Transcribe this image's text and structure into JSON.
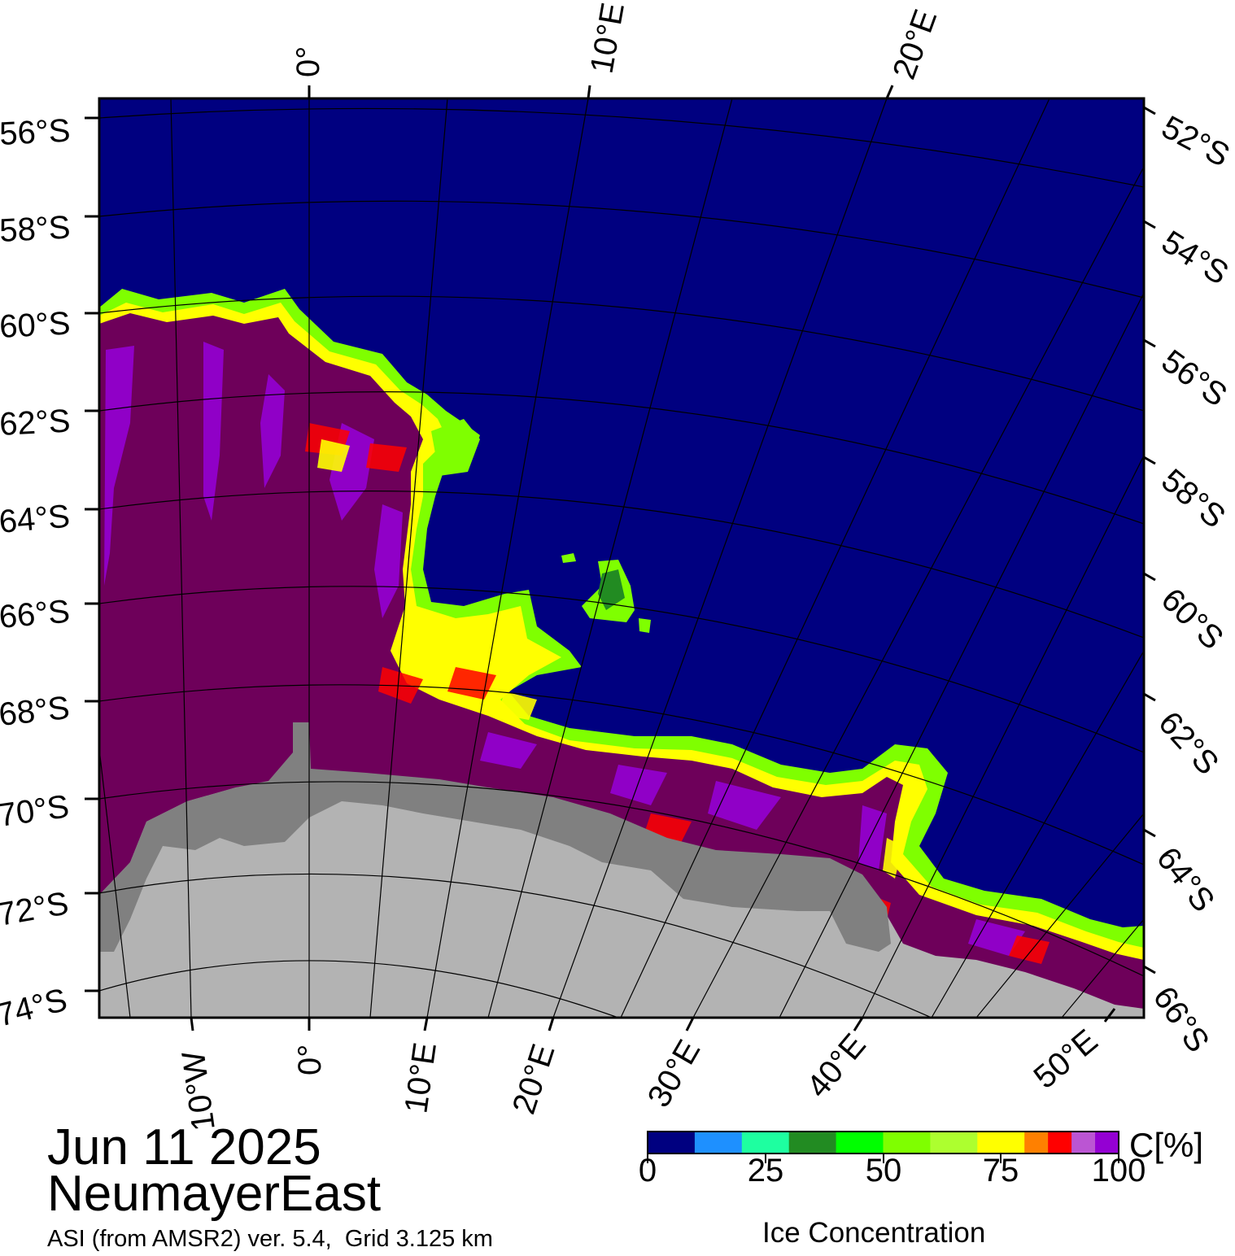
{
  "map": {
    "date": "Jun 11 2025",
    "region": "NeumayerEast",
    "product": "ASI (from AMSR2) ver. 5.4,  Grid 3.125 km",
    "colors": {
      "open_water": "#000080",
      "land": "#b3b3b3",
      "ice_shelf": "#808080",
      "dense_ice": "#6e005a",
      "frame": "#000000",
      "graticule": "#000000"
    },
    "latitude_labels_left": [
      "56°S",
      "58°S",
      "60°S",
      "62°S",
      "64°S",
      "66°S",
      "68°S",
      "70°S",
      "72°S",
      "74°S"
    ],
    "latitude_labels_right": [
      "52°S",
      "54°S",
      "56°S",
      "58°S",
      "60°S",
      "62°S",
      "64°S",
      "66°S"
    ],
    "longitude_labels_top": [
      "0°",
      "10°E",
      "20°E"
    ],
    "longitude_labels_bottom": [
      "10°W",
      "0°",
      "10°E",
      "20°E",
      "30°E",
      "40°E",
      "50°E"
    ]
  },
  "colorbar": {
    "unit": "C[%]",
    "title": "Ice Concentration",
    "tick_labels": [
      "0",
      "25",
      "50",
      "75",
      "100"
    ],
    "bins": [
      {
        "range": "0-10",
        "color": "#000080"
      },
      {
        "range": "10-20",
        "color": "#1e90ff"
      },
      {
        "range": "20-30",
        "color": "#1effa0"
      },
      {
        "range": "30-40",
        "color": "#228b22"
      },
      {
        "range": "40-50",
        "color": "#00ff00"
      },
      {
        "range": "50-60",
        "color": "#7fff00"
      },
      {
        "range": "60-70",
        "color": "#adff2f"
      },
      {
        "range": "70-80",
        "color": "#ffff00"
      },
      {
        "range": "80-85",
        "color": "#ff8000"
      },
      {
        "range": "85-90",
        "color": "#ff0000"
      },
      {
        "range": "90-95",
        "color": "#bb55d3"
      },
      {
        "range": "95-100",
        "color": "#9400d3"
      }
    ]
  }
}
